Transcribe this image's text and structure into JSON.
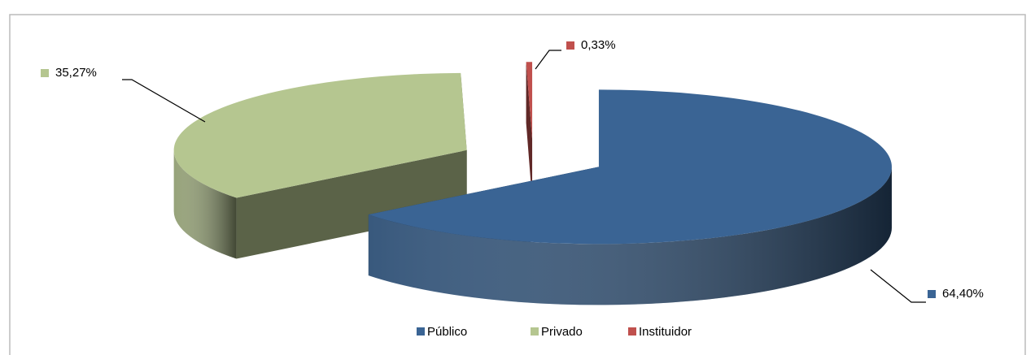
{
  "chart_data": {
    "type": "pie3d",
    "categories": [
      "Público",
      "Privado",
      "Instituidor"
    ],
    "values": [
      64.4,
      35.27,
      0.33
    ],
    "value_labels": [
      "64,40%",
      "35,27%",
      "0,33%"
    ],
    "colors": [
      "#3a6494",
      "#b5c690",
      "#c0504d"
    ],
    "legend": "bottom"
  }
}
